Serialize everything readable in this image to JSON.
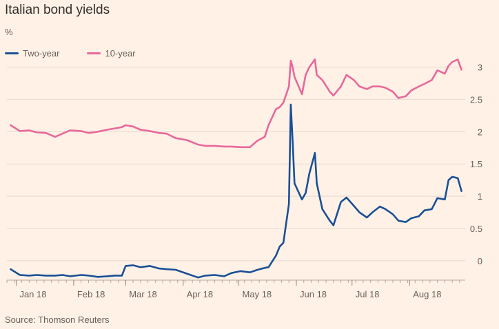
{
  "title": "Italian bond yields",
  "unit": "%",
  "source": "Source: Thomson Reuters",
  "colors": {
    "background": "#fff1e5",
    "two_year": "#1a4f96",
    "ten_year": "#e8689b",
    "grid": "#e6d9ce"
  },
  "legend": [
    {
      "label": "Two-year",
      "color": "#1a4f96"
    },
    {
      "label": "10-year",
      "color": "#e8689b"
    }
  ],
  "chart_data": {
    "type": "line",
    "title": "Italian bond yields",
    "ylabel": "%",
    "ylim": [
      -0.3,
      3.4
    ],
    "y_ticks": [
      0,
      0.5,
      1,
      1.5,
      2,
      2.5,
      3
    ],
    "y_tick_labels": [
      "0",
      "0.5",
      "1",
      "1.5",
      "2",
      "2.5",
      "3"
    ],
    "x_tick_labels": [
      "Jan 18",
      "Feb 18",
      "Mar 18",
      "Apr 18",
      "May 18",
      "Jun 18",
      "Jul 18",
      "Aug 18"
    ],
    "x_tick_dates": [
      "2018-01-01",
      "2018-02-01",
      "2018-03-01",
      "2018-04-01",
      "2018-05-01",
      "2018-06-01",
      "2018-07-01",
      "2018-08-01"
    ],
    "x_range": [
      "2017-12-27",
      "2018-08-31"
    ],
    "grid": "horizontal",
    "legend_position": "top-left",
    "series": [
      {
        "name": "Two-year",
        "color": "#1a4f96",
        "points": [
          [
            "2017-12-29",
            -0.13
          ],
          [
            "2018-01-03",
            -0.22
          ],
          [
            "2018-01-08",
            -0.23
          ],
          [
            "2018-01-12",
            -0.22
          ],
          [
            "2018-01-17",
            -0.23
          ],
          [
            "2018-01-22",
            -0.23
          ],
          [
            "2018-01-26",
            -0.22
          ],
          [
            "2018-01-30",
            -0.24
          ],
          [
            "2018-02-05",
            -0.22
          ],
          [
            "2018-02-09",
            -0.23
          ],
          [
            "2018-02-14",
            -0.25
          ],
          [
            "2018-02-19",
            -0.24
          ],
          [
            "2018-02-23",
            -0.23
          ],
          [
            "2018-02-27",
            -0.23
          ],
          [
            "2018-03-01",
            -0.08
          ],
          [
            "2018-03-05",
            -0.07
          ],
          [
            "2018-03-09",
            -0.1
          ],
          [
            "2018-03-14",
            -0.08
          ],
          [
            "2018-03-19",
            -0.12
          ],
          [
            "2018-03-23",
            -0.13
          ],
          [
            "2018-03-28",
            -0.14
          ],
          [
            "2018-04-03",
            -0.2
          ],
          [
            "2018-04-09",
            -0.26
          ],
          [
            "2018-04-13",
            -0.23
          ],
          [
            "2018-04-18",
            -0.22
          ],
          [
            "2018-04-23",
            -0.24
          ],
          [
            "2018-04-27",
            -0.19
          ],
          [
            "2018-05-02",
            -0.16
          ],
          [
            "2018-05-07",
            -0.18
          ],
          [
            "2018-05-11",
            -0.14
          ],
          [
            "2018-05-15",
            -0.11
          ],
          [
            "2018-05-17",
            -0.1
          ],
          [
            "2018-05-21",
            0.08
          ],
          [
            "2018-05-23",
            0.22
          ],
          [
            "2018-05-25",
            0.28
          ],
          [
            "2018-05-28",
            0.88
          ],
          [
            "2018-05-29",
            2.42
          ],
          [
            "2018-05-30",
            1.85
          ],
          [
            "2018-05-31",
            1.2
          ],
          [
            "2018-06-04",
            0.95
          ],
          [
            "2018-06-06",
            1.05
          ],
          [
            "2018-06-08",
            1.35
          ],
          [
            "2018-06-11",
            1.67
          ],
          [
            "2018-06-12",
            1.2
          ],
          [
            "2018-06-15",
            0.8
          ],
          [
            "2018-06-19",
            0.62
          ],
          [
            "2018-06-21",
            0.55
          ],
          [
            "2018-06-25",
            0.91
          ],
          [
            "2018-06-28",
            0.98
          ],
          [
            "2018-07-02",
            0.85
          ],
          [
            "2018-07-05",
            0.75
          ],
          [
            "2018-07-09",
            0.67
          ],
          [
            "2018-07-12",
            0.75
          ],
          [
            "2018-07-16",
            0.84
          ],
          [
            "2018-07-19",
            0.8
          ],
          [
            "2018-07-23",
            0.72
          ],
          [
            "2018-07-26",
            0.62
          ],
          [
            "2018-07-30",
            0.6
          ],
          [
            "2018-08-02",
            0.66
          ],
          [
            "2018-08-06",
            0.69
          ],
          [
            "2018-08-09",
            0.78
          ],
          [
            "2018-08-13",
            0.8
          ],
          [
            "2018-08-16",
            0.97
          ],
          [
            "2018-08-20",
            0.95
          ],
          [
            "2018-08-22",
            1.25
          ],
          [
            "2018-08-24",
            1.3
          ],
          [
            "2018-08-27",
            1.28
          ],
          [
            "2018-08-29",
            1.08
          ]
        ]
      },
      {
        "name": "10-year",
        "color": "#e8689b",
        "points": [
          [
            "2017-12-29",
            2.1
          ],
          [
            "2018-01-03",
            2.01
          ],
          [
            "2018-01-08",
            2.02
          ],
          [
            "2018-01-12",
            1.99
          ],
          [
            "2018-01-17",
            1.98
          ],
          [
            "2018-01-22",
            1.92
          ],
          [
            "2018-01-26",
            1.97
          ],
          [
            "2018-01-30",
            2.02
          ],
          [
            "2018-02-05",
            2.01
          ],
          [
            "2018-02-09",
            1.98
          ],
          [
            "2018-02-14",
            2.0
          ],
          [
            "2018-02-19",
            2.03
          ],
          [
            "2018-02-23",
            2.05
          ],
          [
            "2018-02-27",
            2.07
          ],
          [
            "2018-03-01",
            2.1
          ],
          [
            "2018-03-05",
            2.08
          ],
          [
            "2018-03-09",
            2.03
          ],
          [
            "2018-03-14",
            2.01
          ],
          [
            "2018-03-19",
            1.98
          ],
          [
            "2018-03-23",
            1.97
          ],
          [
            "2018-03-28",
            1.9
          ],
          [
            "2018-04-03",
            1.87
          ],
          [
            "2018-04-09",
            1.8
          ],
          [
            "2018-04-13",
            1.78
          ],
          [
            "2018-04-18",
            1.78
          ],
          [
            "2018-04-23",
            1.77
          ],
          [
            "2018-04-27",
            1.77
          ],
          [
            "2018-05-02",
            1.76
          ],
          [
            "2018-05-07",
            1.76
          ],
          [
            "2018-05-11",
            1.86
          ],
          [
            "2018-05-15",
            1.92
          ],
          [
            "2018-05-17",
            2.1
          ],
          [
            "2018-05-21",
            2.35
          ],
          [
            "2018-05-23",
            2.38
          ],
          [
            "2018-05-25",
            2.45
          ],
          [
            "2018-05-28",
            2.7
          ],
          [
            "2018-05-29",
            3.1
          ],
          [
            "2018-05-30",
            3.0
          ],
          [
            "2018-05-31",
            2.85
          ],
          [
            "2018-06-04",
            2.58
          ],
          [
            "2018-06-06",
            2.88
          ],
          [
            "2018-06-08",
            3.0
          ],
          [
            "2018-06-11",
            3.12
          ],
          [
            "2018-06-12",
            2.88
          ],
          [
            "2018-06-15",
            2.8
          ],
          [
            "2018-06-19",
            2.62
          ],
          [
            "2018-06-21",
            2.56
          ],
          [
            "2018-06-25",
            2.7
          ],
          [
            "2018-06-28",
            2.88
          ],
          [
            "2018-07-02",
            2.8
          ],
          [
            "2018-07-05",
            2.7
          ],
          [
            "2018-07-09",
            2.66
          ],
          [
            "2018-07-12",
            2.7
          ],
          [
            "2018-07-16",
            2.7
          ],
          [
            "2018-07-19",
            2.68
          ],
          [
            "2018-07-23",
            2.62
          ],
          [
            "2018-07-26",
            2.52
          ],
          [
            "2018-07-30",
            2.55
          ],
          [
            "2018-08-02",
            2.64
          ],
          [
            "2018-08-06",
            2.7
          ],
          [
            "2018-08-09",
            2.74
          ],
          [
            "2018-08-13",
            2.8
          ],
          [
            "2018-08-16",
            2.95
          ],
          [
            "2018-08-20",
            2.9
          ],
          [
            "2018-08-22",
            3.02
          ],
          [
            "2018-08-24",
            3.08
          ],
          [
            "2018-08-27",
            3.12
          ],
          [
            "2018-08-29",
            2.96
          ]
        ]
      }
    ]
  }
}
